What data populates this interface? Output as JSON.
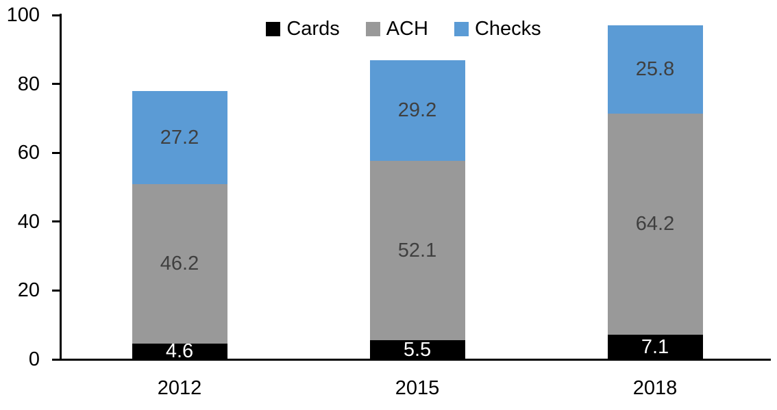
{
  "chart_data": {
    "type": "bar",
    "stacked": true,
    "title": "",
    "xlabel": "",
    "ylabel": "",
    "categories": [
      "2012",
      "2015",
      "2018"
    ],
    "series": [
      {
        "name": "Cards",
        "color": "#000000",
        "label_color": "#ffffff",
        "values": [
          4.6,
          5.5,
          7.1
        ]
      },
      {
        "name": "ACH",
        "color": "#999999",
        "label_color": "#3f3f3f",
        "values": [
          46.2,
          52.1,
          64.2
        ]
      },
      {
        "name": "Checks",
        "color": "#5b9bd5",
        "label_color": "#3f3f3f",
        "values": [
          27.2,
          29.2,
          25.8
        ]
      }
    ],
    "totals": [
      78.0,
      86.8,
      97.1
    ],
    "ylim": [
      0,
      100
    ],
    "yticks": [
      0,
      20,
      40,
      60,
      80,
      100
    ],
    "grid": false,
    "legend_position": "top-center",
    "axis_color": "#000000",
    "background_color": "#ffffff"
  }
}
